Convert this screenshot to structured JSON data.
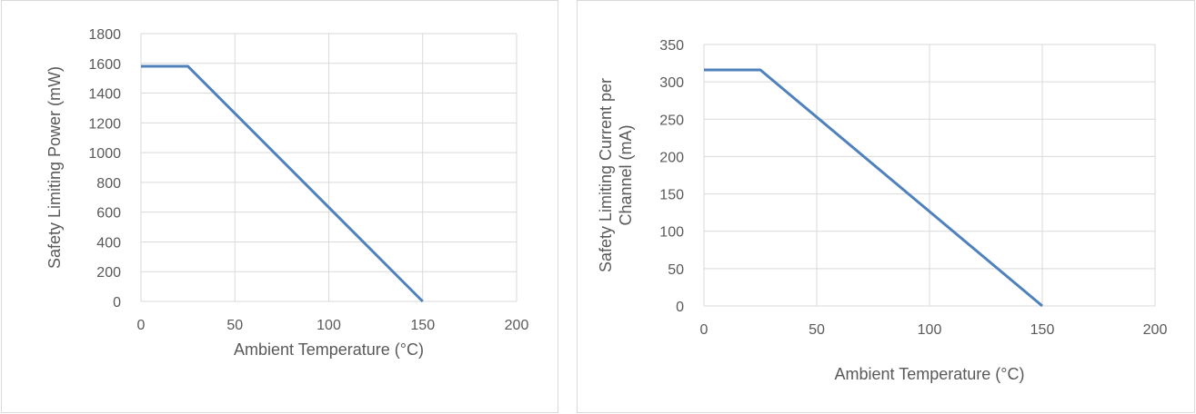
{
  "chart_data": [
    {
      "type": "line",
      "title": "",
      "xlabel": "Ambient Temperature (°C)",
      "ylabel": "Safety Limiting Power (mW)",
      "xlim": [
        0,
        200
      ],
      "ylim": [
        0,
        1800
      ],
      "xticks": [
        0,
        50,
        100,
        150,
        200
      ],
      "yticks": [
        0,
        200,
        400,
        600,
        800,
        1000,
        1200,
        1400,
        1600,
        1800
      ],
      "grid": true,
      "legend": "none",
      "series": [
        {
          "color": "#4f81bd",
          "x": [
            0,
            25,
            150
          ],
          "y": [
            1580,
            1580,
            0
          ]
        }
      ]
    },
    {
      "type": "line",
      "title": "",
      "xlabel": "Ambient Temperature (°C)",
      "ylabel": [
        "Safety Limiting Current per",
        "Channel (mA)"
      ],
      "xlim": [
        0,
        200
      ],
      "ylim": [
        0,
        350
      ],
      "xticks": [
        0,
        50,
        100,
        150,
        200
      ],
      "yticks": [
        0,
        50,
        100,
        150,
        200,
        250,
        300,
        350
      ],
      "grid": true,
      "legend": "none",
      "series": [
        {
          "color": "#4f81bd",
          "x": [
            0,
            25,
            150
          ],
          "y": [
            316,
            316,
            0
          ]
        }
      ]
    }
  ]
}
